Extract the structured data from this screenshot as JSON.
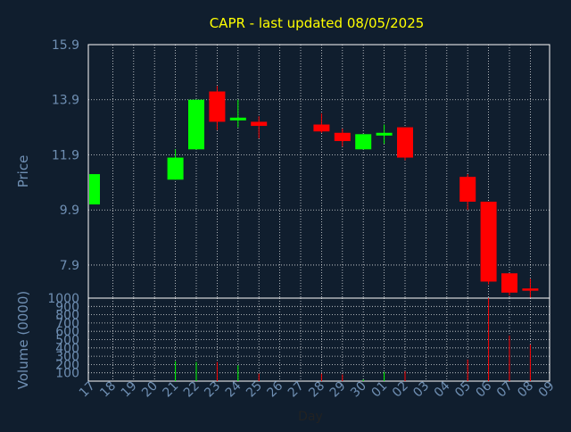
{
  "chart_data": {
    "type": "candlestick",
    "title": "CAPR - last updated 08/05/2025",
    "price_panel": {
      "ylabel": "Price",
      "ylim": [
        6.7,
        15.9
      ],
      "yticks": [
        "15.9",
        "13.9",
        "11.9",
        "9.9",
        "7.9"
      ],
      "ytick_values": [
        15.9,
        13.9,
        11.9,
        9.9,
        7.9
      ],
      "grid": true
    },
    "volume_panel": {
      "ylabel": "Volume (0000)",
      "ylim": [
        0,
        1000
      ],
      "yticks": [
        "1000",
        "900",
        "800",
        "700",
        "600",
        "500",
        "400",
        "300",
        "200",
        "100"
      ],
      "ytick_values": [
        1000,
        900,
        800,
        700,
        600,
        500,
        400,
        300,
        200,
        100
      ],
      "grid": true
    },
    "xlabel": "Day",
    "days": [
      "17",
      "18",
      "19",
      "20",
      "21",
      "22",
      "23",
      "24",
      "25",
      "26",
      "27",
      "28",
      "29",
      "30",
      "01",
      "02",
      "03",
      "04",
      "05",
      "06",
      "07",
      "08",
      "09"
    ],
    "candles": [
      {
        "day": "17",
        "open": 10.1,
        "close": 11.2,
        "high": 11.2,
        "low": 10.1,
        "volume": 0
      },
      {
        "day": "21",
        "open": 11.0,
        "close": 11.8,
        "high": 12.1,
        "low": 11.0,
        "volume": 240
      },
      {
        "day": "22",
        "open": 12.1,
        "close": 13.9,
        "high": 13.9,
        "low": 12.1,
        "volume": 230
      },
      {
        "day": "23",
        "open": 14.2,
        "close": 13.1,
        "high": 14.4,
        "low": 12.8,
        "volume": 230
      },
      {
        "day": "24",
        "open": 13.15,
        "close": 13.25,
        "high": 13.9,
        "low": 12.9,
        "volume": 190
      },
      {
        "day": "25",
        "open": 13.1,
        "close": 12.95,
        "high": 13.3,
        "low": 12.5,
        "volume": 90
      },
      {
        "day": "28",
        "open": 13.0,
        "close": 12.75,
        "high": 13.4,
        "low": 12.7,
        "volume": 90
      },
      {
        "day": "29",
        "open": 12.7,
        "close": 12.4,
        "high": 12.85,
        "low": 12.2,
        "volume": 80
      },
      {
        "day": "30",
        "open": 12.1,
        "close": 12.65,
        "high": 12.65,
        "low": 12.1,
        "volume": 20
      },
      {
        "day": "01",
        "open": 12.6,
        "close": 12.7,
        "high": 13.0,
        "low": 12.3,
        "volume": 110
      },
      {
        "day": "02",
        "open": 12.9,
        "close": 11.8,
        "high": 12.9,
        "low": 11.7,
        "volume": 120
      },
      {
        "day": "05",
        "open": 11.1,
        "close": 10.2,
        "high": 11.2,
        "low": 9.9,
        "volume": 260
      },
      {
        "day": "06",
        "open": 10.2,
        "close": 7.3,
        "high": 10.2,
        "low": 7.2,
        "volume": 1000
      },
      {
        "day": "07",
        "open": 7.6,
        "close": 6.9,
        "high": 7.6,
        "low": 6.8,
        "volume": 550
      },
      {
        "day": "08",
        "open": 7.05,
        "close": 7.0,
        "high": 7.4,
        "low": 6.7,
        "volume": 440
      }
    ],
    "colors": {
      "background": "#101e2e",
      "up": "#00ff00",
      "down": "#ff0000",
      "title": "#ffff00",
      "axis_text": "#6f8fb3",
      "frame": "#ffffff",
      "grid": "#ffffff"
    }
  }
}
